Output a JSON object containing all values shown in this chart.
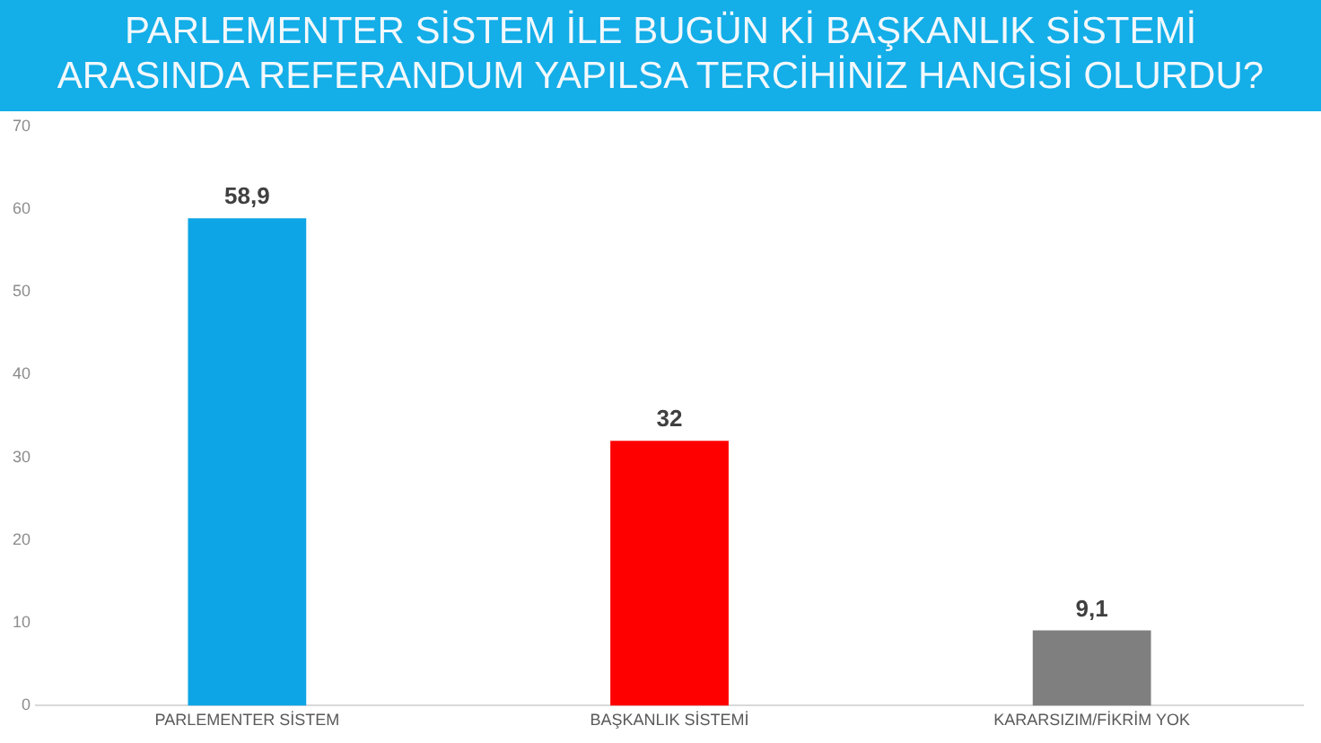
{
  "chart_data": {
    "type": "bar",
    "title": "PARLEMENTER SİSTEM İLE BUGÜN Kİ BAŞKANLIK SİSTEMİ ARASINDA REFERANDUM YAPILSA TERCİHİNİZ HANGİSİ OLURDU?",
    "categories": [
      "PARLEMENTER SİSTEM",
      "BAŞKANLIK SİSTEMİ",
      "KARARSIZIM/FİKRİM YOK"
    ],
    "values": [
      58.9,
      32,
      9.1
    ],
    "colors": [
      "#0ea5e6",
      "#ff0000",
      "#7f7f7f"
    ],
    "value_labels": [
      "58,9",
      "32",
      "9,1"
    ],
    "ylim": [
      0,
      70
    ],
    "yticks": [
      0,
      10,
      20,
      30,
      40,
      50,
      60,
      70
    ],
    "grid": false
  }
}
